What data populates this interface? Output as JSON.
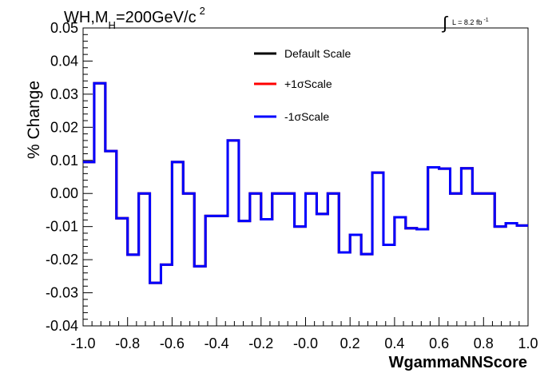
{
  "chart_data": {
    "type": "line",
    "title_main": "WH,M",
    "title_sub": "H",
    "title_rest": "=200GeV/c",
    "title_sup": "2",
    "lumi_text": "L = 8.2 fb",
    "lumi_sup": "-1",
    "xlabel": "WgammaNNScore",
    "ylabel": "% Change",
    "xlim": [
      -1.0,
      1.0
    ],
    "ylim": [
      -0.04,
      0.05
    ],
    "x_ticks": [
      "-1.0",
      "-0.8",
      "-0.6",
      "-0.4",
      "-0.2",
      "-0.0",
      "0.2",
      "0.4",
      "0.6",
      "0.8",
      "1.0"
    ],
    "y_ticks": [
      "-0.04",
      "-0.03",
      "-0.02",
      "-0.01",
      "0.00",
      "0.01",
      "0.02",
      "0.03",
      "0.04",
      "0.05"
    ],
    "bin_edges": [
      -1.0,
      -0.95,
      -0.9,
      -0.85,
      -0.8,
      -0.75,
      -0.7,
      -0.65,
      -0.6,
      -0.55,
      -0.5,
      -0.45,
      -0.4,
      -0.35,
      -0.3,
      -0.25,
      -0.2,
      -0.15,
      -0.1,
      -0.05,
      0.0,
      0.05,
      0.1,
      0.15,
      0.2,
      0.25,
      0.3,
      0.35,
      0.4,
      0.45,
      0.5,
      0.55,
      0.6,
      0.65,
      0.7,
      0.75,
      0.8,
      0.85,
      0.9,
      0.95,
      1.0
    ],
    "series": [
      {
        "name": "Default Scale",
        "color": "#000000",
        "values": [
          0.0095,
          0.0333,
          0.0128,
          -0.0075,
          -0.0185,
          0.0,
          -0.027,
          -0.0215,
          0.0095,
          0.0,
          -0.022,
          -0.0068,
          -0.0068,
          0.016,
          -0.0083,
          0.0,
          -0.0078,
          0.0,
          0.0,
          -0.01,
          0.0,
          -0.0062,
          0.0,
          -0.0178,
          -0.0125,
          -0.0183,
          0.0063,
          -0.0155,
          -0.0072,
          -0.0105,
          -0.0108,
          0.0079,
          0.0075,
          0.0,
          0.0076,
          0.0,
          0.0,
          -0.01,
          -0.009,
          -0.0097
        ]
      },
      {
        "name": "+1σScale",
        "color": "#ff0000",
        "values": [
          0.0095,
          0.0333,
          0.0128,
          -0.0075,
          -0.0185,
          0.0,
          -0.027,
          -0.0215,
          0.0095,
          0.0,
          -0.022,
          -0.0068,
          -0.0068,
          0.016,
          -0.0083,
          0.0,
          -0.0078,
          0.0,
          0.0,
          -0.01,
          0.0,
          -0.0062,
          0.0,
          -0.0178,
          -0.0125,
          -0.0183,
          0.0063,
          -0.0155,
          -0.0072,
          -0.0105,
          -0.0108,
          0.0079,
          0.0075,
          0.0,
          0.0076,
          0.0,
          0.0,
          -0.01,
          -0.009,
          -0.0097
        ]
      },
      {
        "name": "-1σScale",
        "color": "#0000ff",
        "values": [
          0.0095,
          0.0333,
          0.0128,
          -0.0075,
          -0.0185,
          0.0,
          -0.027,
          -0.0215,
          0.0095,
          0.0,
          -0.022,
          -0.0068,
          -0.0068,
          0.016,
          -0.0083,
          0.0,
          -0.0078,
          0.0,
          0.0,
          -0.01,
          0.0,
          -0.0062,
          0.0,
          -0.0178,
          -0.0125,
          -0.0183,
          0.0063,
          -0.0155,
          -0.0072,
          -0.0105,
          -0.0108,
          0.0079,
          0.0075,
          0.0,
          0.0076,
          0.0,
          0.0,
          -0.01,
          -0.009,
          -0.0097
        ]
      }
    ],
    "legend_position": "top-center",
    "grid": false
  }
}
